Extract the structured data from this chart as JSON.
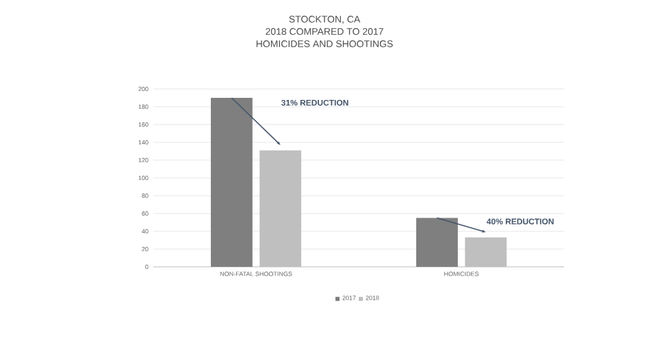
{
  "chart_data": {
    "type": "bar",
    "title": "STOCKTON, CA\n2018 COMPARED TO 2017\nHOMICIDES AND SHOOTINGS",
    "categories": [
      "NON-FATAL SHOOTINGS",
      "HOMICIDES"
    ],
    "series": [
      {
        "name": "2017",
        "color": "#7f7f7f",
        "values": [
          190,
          55
        ]
      },
      {
        "name": "2018",
        "color": "#bfbfbf",
        "values": [
          131,
          33
        ]
      }
    ],
    "ylim": [
      0,
      200
    ],
    "yticks": [
      0,
      20,
      40,
      60,
      80,
      100,
      120,
      140,
      160,
      180,
      200
    ],
    "grid": "y",
    "legend": "bottom",
    "annotations": [
      "31% REDUCTION",
      "40% REDUCTION"
    ]
  }
}
